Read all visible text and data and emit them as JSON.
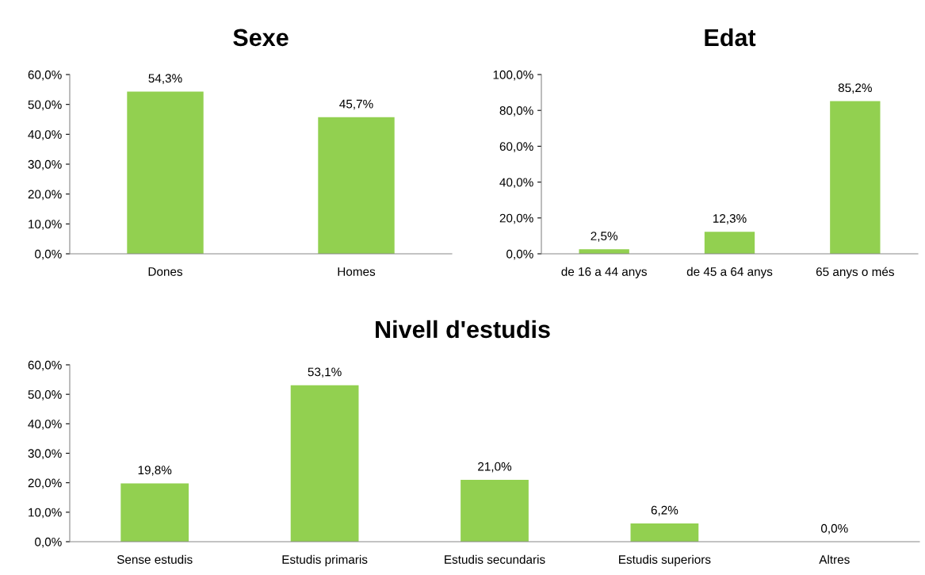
{
  "chart_data": [
    {
      "type": "bar",
      "title": "Sexe",
      "categories": [
        "Dones",
        "Homes"
      ],
      "values": [
        54.3,
        45.7
      ],
      "value_labels": [
        "54,3%",
        "45,7%"
      ],
      "color": "#92d050",
      "ylim": [
        0,
        60
      ],
      "yticks": [
        {
          "value": 0,
          "label": "0,0%"
        },
        {
          "value": 10,
          "label": "10,0%"
        },
        {
          "value": 20,
          "label": "20,0%"
        },
        {
          "value": 30,
          "label": "30,0%"
        },
        {
          "value": 40,
          "label": "40,0%"
        },
        {
          "value": 50,
          "label": "50,0%"
        },
        {
          "value": 60,
          "label": "60,0%"
        }
      ],
      "grid": false,
      "legend": false
    },
    {
      "type": "bar",
      "title": "Edat",
      "categories": [
        "de 16 a 44 anys",
        "de 45 a 64 anys",
        "65 anys o més"
      ],
      "values": [
        2.5,
        12.3,
        85.2
      ],
      "value_labels": [
        "2,5%",
        "12,3%",
        "85,2%"
      ],
      "color": "#92d050",
      "ylim": [
        0,
        100
      ],
      "yticks": [
        {
          "value": 0,
          "label": "0,0%"
        },
        {
          "value": 20,
          "label": "20,0%"
        },
        {
          "value": 40,
          "label": "40,0%"
        },
        {
          "value": 60,
          "label": "60,0%"
        },
        {
          "value": 80,
          "label": "80,0%"
        },
        {
          "value": 100,
          "label": "100,0%"
        }
      ],
      "grid": false,
      "legend": false
    },
    {
      "type": "bar",
      "title": "Nivell d'estudis",
      "categories": [
        "Sense estudis",
        "Estudis primaris",
        "Estudis secundaris",
        "Estudis superiors",
        "Altres"
      ],
      "values": [
        19.8,
        53.1,
        21.0,
        6.2,
        0.0
      ],
      "value_labels": [
        "19,8%",
        "53,1%",
        "21,0%",
        "6,2%",
        "0,0%"
      ],
      "color": "#92d050",
      "ylim": [
        0,
        60
      ],
      "yticks": [
        {
          "value": 0,
          "label": "0,0%"
        },
        {
          "value": 10,
          "label": "10,0%"
        },
        {
          "value": 20,
          "label": "20,0%"
        },
        {
          "value": 30,
          "label": "30,0%"
        },
        {
          "value": 40,
          "label": "40,0%"
        },
        {
          "value": 50,
          "label": "50,0%"
        },
        {
          "value": 60,
          "label": "60,0%"
        }
      ],
      "grid": false,
      "legend": false
    }
  ]
}
